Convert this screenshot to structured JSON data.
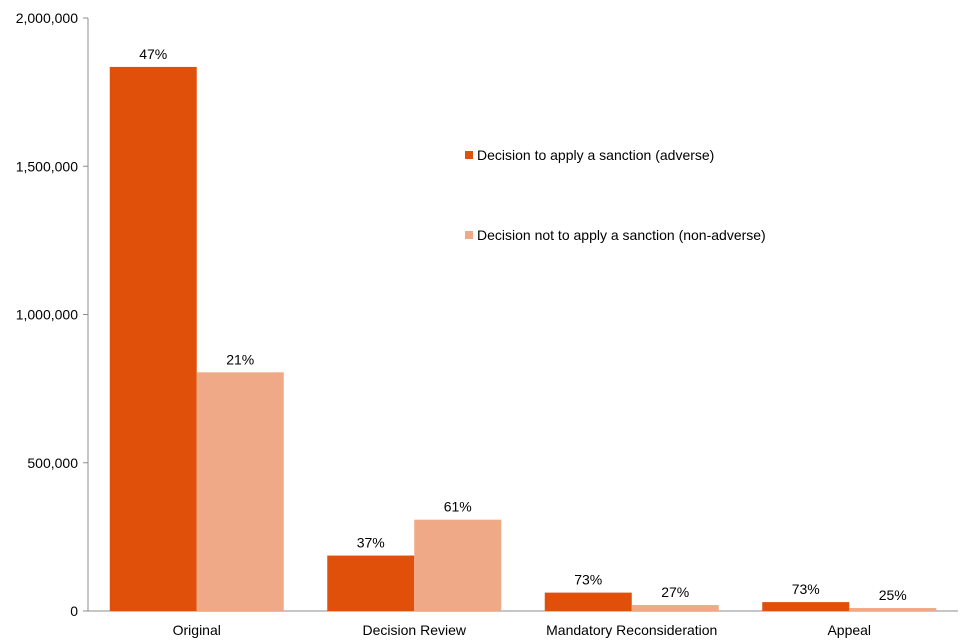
{
  "chart_data": {
    "type": "bar",
    "title": "",
    "xlabel": "",
    "ylabel": "",
    "ylim": [
      0,
      2000000
    ],
    "yticks": [
      0,
      500000,
      1000000,
      1500000,
      2000000
    ],
    "ytick_labels": [
      "0",
      "500,000",
      "1,000,000",
      "1,500,000",
      "2,000,000"
    ],
    "grid": false,
    "legend_position": "top-right",
    "categories": [
      "Original",
      "Decision Review",
      "Mandatory Reconsideration",
      "Appeal"
    ],
    "series": [
      {
        "name": "Decision to apply a sanction (adverse)",
        "color": "#e0500a",
        "values": [
          1835000,
          187000,
          62000,
          30000
        ],
        "labels": [
          "47%",
          "37%",
          "73%",
          "73%"
        ]
      },
      {
        "name": "Decision not to apply a sanction (non-adverse)",
        "color": "#f0a987",
        "values": [
          805000,
          308000,
          20000,
          10000
        ],
        "labels": [
          "21%",
          "61%",
          "27%",
          "25%"
        ]
      }
    ]
  }
}
